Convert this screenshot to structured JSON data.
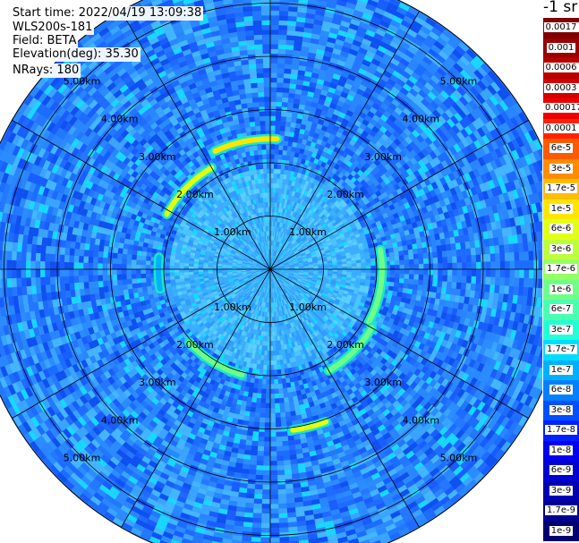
{
  "header": {
    "start_time": "Start time: 2022/04/19 13:09:38",
    "instrument": "WLS200s-181",
    "field": "Field: BETA",
    "elevation": "Elevation(deg): 35.30",
    "nrays": "NRays: 180"
  },
  "colorbar": {
    "unit_label": "-1 sr",
    "labels": [
      "0.0017",
      "0.001",
      "0.0006",
      "0.0003",
      "0.00017",
      "0.0001",
      "6e-5",
      "3e-5",
      "1.7e-5",
      "1e-5",
      "6e-6",
      "3e-6",
      "1.7e-6",
      "1e-6",
      "6e-7",
      "3e-7",
      "1.7e-7",
      "1e-7",
      "6e-8",
      "3e-8",
      "1.7e-8",
      "1e-8",
      "6e-9",
      "3e-9",
      "1.7e-9",
      "1e-9"
    ],
    "colors": [
      "#7f0000",
      "#9a0000",
      "#b80000",
      "#d40000",
      "#ee0000",
      "#ff2200",
      "#ff5a00",
      "#ff8c00",
      "#ffbd00",
      "#ffe600",
      "#e2ff15",
      "#bcff3b",
      "#96ff61",
      "#6fff88",
      "#49ffae",
      "#23ffd4",
      "#00dcff",
      "#00b0ff",
      "#0080ff",
      "#0050ff",
      "#0020ff",
      "#0000f0",
      "#0000d0",
      "#0000b0",
      "#000090",
      "#000070"
    ]
  },
  "chart_data": {
    "type": "heatmap",
    "projection": "polar",
    "field": "BETA",
    "unit": "-1 sr",
    "elevation_deg": 35.3,
    "n_rays": 180,
    "range_rings_km": [
      1.0,
      2.0,
      3.0,
      4.0,
      5.0
    ],
    "ring_labels": [
      "1.00km",
      "2.00km",
      "3.00km",
      "4.00km",
      "5.00km"
    ],
    "azimuth_grid_step_deg": 30,
    "max_range_km": 5.6,
    "background_beta": "3e-8",
    "near_range_beta": "1e-7",
    "features": [
      {
        "description": "aerosol layer arc",
        "range_km": 2.45,
        "az_start_deg": 335,
        "az_end_deg": 3,
        "beta": "1e-5"
      },
      {
        "description": "aerosol layer arc",
        "range_km": 2.2,
        "az_start_deg": 298,
        "az_end_deg": 330,
        "beta": "6e-6"
      },
      {
        "description": "aerosol layer arc",
        "range_km": 2.1,
        "az_start_deg": 80,
        "az_end_deg": 118,
        "beta": "1e-6"
      },
      {
        "description": "aerosol layer arc",
        "range_km": 2.2,
        "az_start_deg": 120,
        "az_end_deg": 150,
        "beta": "1e-6"
      },
      {
        "description": "aerosol layer arc",
        "range_km": 3.05,
        "az_start_deg": 160,
        "az_end_deg": 172,
        "beta": "6e-6"
      },
      {
        "description": "aerosol layer arc",
        "range_km": 2.05,
        "az_start_deg": 195,
        "az_end_deg": 228,
        "beta": "1e-6"
      },
      {
        "description": "aerosol layer arc",
        "range_km": 2.1,
        "az_start_deg": 260,
        "az_end_deg": 276,
        "beta": "1e-7"
      }
    ]
  }
}
